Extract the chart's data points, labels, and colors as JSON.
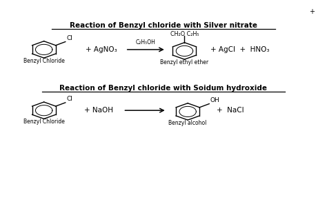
{
  "title1": "Reaction of Benzyl chloride with Silver nitrate",
  "title2": "Reaction of Benzyl chloride with Soidum hydroxide",
  "bg_color": "#ffffff",
  "text_color": "#000000",
  "figsize": [
    4.74,
    2.96
  ],
  "dpi": 100,
  "reaction1": {
    "plus1": "+ AgNO₃",
    "condition": "C₂H₅OH",
    "products": "+ AgCl  +  HNO₃",
    "label_left": "Benzyl Chloride",
    "label_right": "Benzyl ethyl ether",
    "above_arrow": "CH₂O C₂H₅"
  },
  "reaction2": {
    "plus1": "+ NaOH",
    "products": "+  NaCl",
    "label_left": "Benzyl Chloride",
    "label_right": "Benzyl alcohol"
  },
  "top_plus": "+"
}
